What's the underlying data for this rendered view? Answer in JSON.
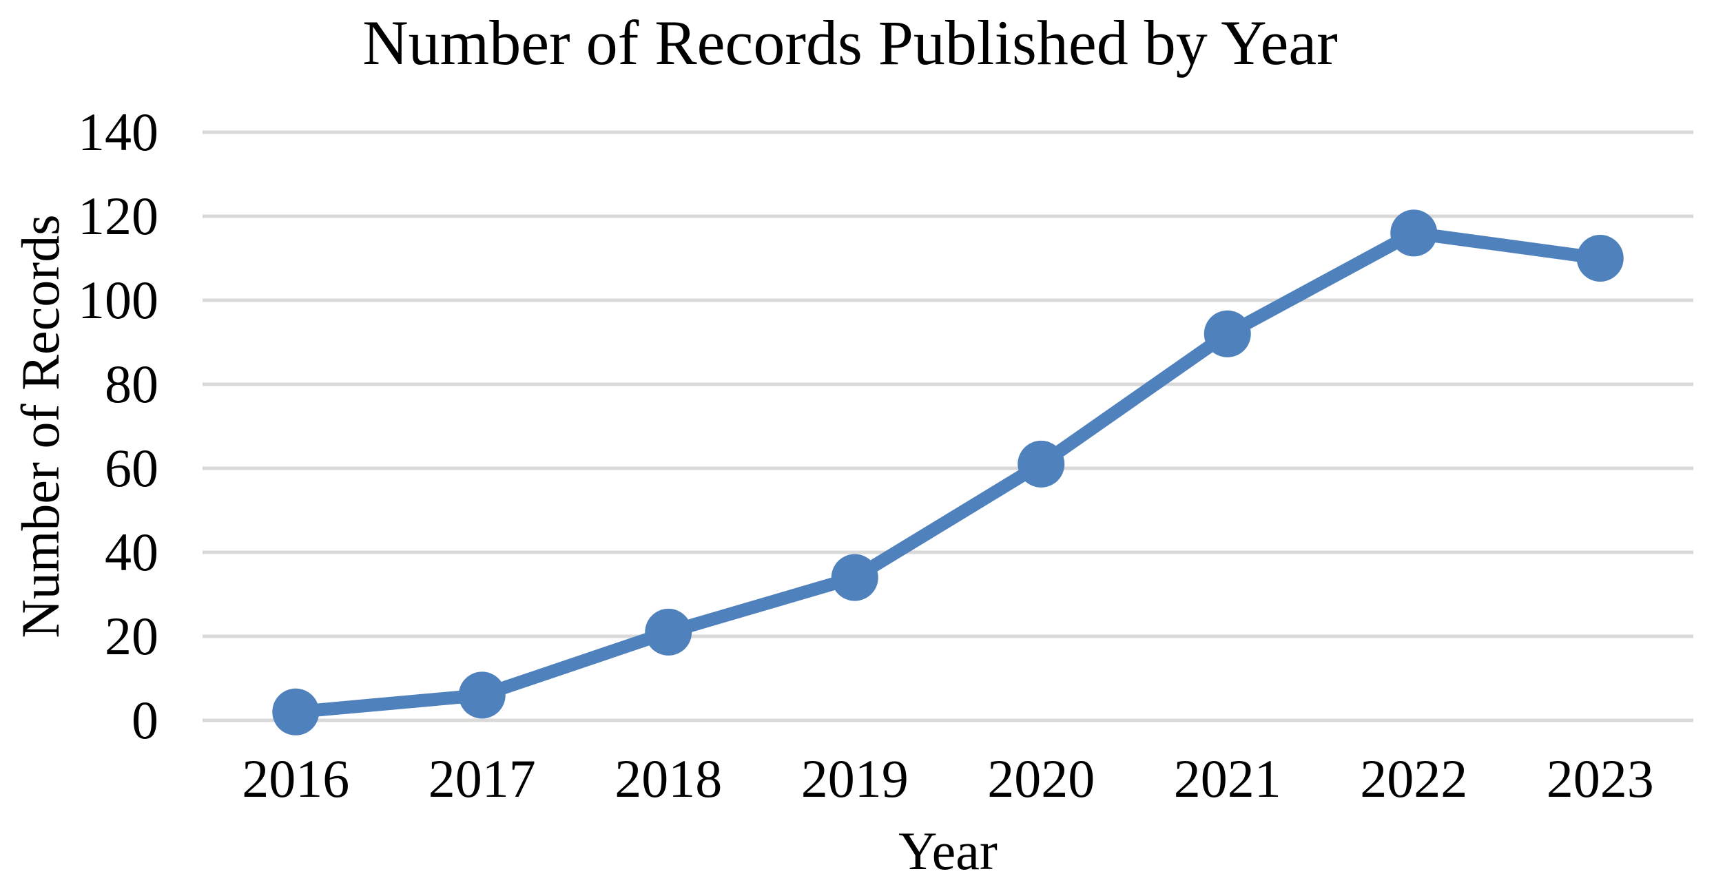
{
  "chart_data": {
    "type": "line",
    "title": "Number of Records Published by Year",
    "xlabel": "Year",
    "ylabel": "Number of Records",
    "categories": [
      "2016",
      "2017",
      "2018",
      "2019",
      "2020",
      "2021",
      "2022",
      "2023"
    ],
    "series": [
      {
        "name": "Number of Records",
        "values": [
          2,
          6,
          21,
          34,
          61,
          92,
          116,
          110
        ]
      }
    ],
    "ylim": [
      0,
      140
    ],
    "yticks": [
      0,
      20,
      40,
      60,
      80,
      100,
      120,
      140
    ],
    "grid": "horizontal",
    "legend": "none",
    "line_color": "#4F81BD",
    "marker_color": "#4F81BD",
    "gridline_color": "#D9D9D9",
    "text_color": "#000000",
    "background_color": "#FFFFFF"
  }
}
